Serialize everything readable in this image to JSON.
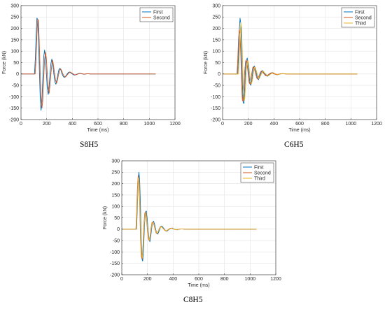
{
  "chart_data": [
    {
      "type": "line",
      "caption": "S8H5",
      "xlabel": "Time (ms)",
      "ylabel": "Force (kN)",
      "xlim": [
        0,
        1200
      ],
      "ylim": [
        -200,
        300
      ],
      "xticks": [
        0,
        200,
        400,
        600,
        800,
        1000,
        1200
      ],
      "yticks": [
        -200,
        -150,
        -100,
        -50,
        0,
        50,
        100,
        150,
        200,
        250,
        300
      ],
      "grid": true,
      "legend": "top-right",
      "series": [
        {
          "name": "First",
          "color": "#0072BD",
          "x": [
            0,
            105,
            112,
            118,
            124,
            130,
            137,
            143,
            150,
            156,
            163,
            170,
            177,
            184,
            191,
            198,
            205,
            212,
            219,
            226,
            233,
            240,
            248,
            256,
            264,
            272,
            280,
            288,
            296,
            304,
            312,
            320,
            330,
            340,
            350,
            360,
            370,
            380,
            390,
            400,
            410,
            420,
            430,
            440,
            450,
            460,
            470,
            480,
            490,
            500,
            520,
            540,
            560,
            600,
            650,
            1050
          ],
          "y": [
            0,
            0,
            70,
            170,
            245,
            240,
            150,
            20,
            -110,
            -160,
            -120,
            -20,
            75,
            105,
            70,
            0,
            -65,
            -90,
            -55,
            0,
            45,
            65,
            40,
            0,
            -35,
            -45,
            -25,
            0,
            20,
            25,
            15,
            0,
            -12,
            -15,
            -8,
            0,
            7,
            9,
            4,
            0,
            -4,
            -5,
            -2,
            0,
            2,
            3,
            1,
            0,
            -1,
            0,
            1,
            0,
            0,
            0,
            0,
            0
          ]
        },
        {
          "name": "Second",
          "color": "#D95319",
          "x": [
            0,
            110,
            117,
            123,
            130,
            136,
            142,
            149,
            156,
            163,
            170,
            177,
            184,
            191,
            198,
            205,
            212,
            219,
            226,
            233,
            240,
            247,
            254,
            262,
            270,
            278,
            286,
            294,
            302,
            310,
            318,
            326,
            336,
            346,
            356,
            366,
            376,
            386,
            396,
            406,
            416,
            426,
            436,
            446,
            456,
            466,
            476,
            486,
            496,
            506,
            520,
            540,
            560,
            600,
            650,
            1050
          ],
          "y": [
            0,
            0,
            60,
            160,
            240,
            235,
            145,
            15,
            -100,
            -150,
            -115,
            -15,
            65,
            95,
            65,
            0,
            -60,
            -85,
            -50,
            0,
            40,
            60,
            35,
            0,
            -30,
            -40,
            -22,
            0,
            18,
            22,
            12,
            0,
            -10,
            -13,
            -7,
            0,
            6,
            8,
            4,
            0,
            -3,
            -4,
            -2,
            0,
            2,
            2,
            1,
            0,
            -1,
            0,
            1,
            0,
            0,
            0,
            0,
            0
          ]
        }
      ]
    },
    {
      "type": "line",
      "caption": "C6H5",
      "xlabel": "Time (ms)",
      "ylabel": "Force (kN)",
      "xlim": [
        0,
        1200
      ],
      "ylim": [
        -200,
        300
      ],
      "xticks": [
        0,
        200,
        400,
        600,
        800,
        1000,
        1200
      ],
      "yticks": [
        -200,
        -150,
        -100,
        -50,
        0,
        50,
        100,
        150,
        200,
        250,
        300
      ],
      "grid": true,
      "legend": "top-right",
      "series": [
        {
          "name": "First",
          "color": "#0072BD",
          "x": [
            0,
            118,
            124,
            130,
            136,
            142,
            148,
            154,
            160,
            166,
            172,
            178,
            185,
            192,
            199,
            206,
            213,
            220,
            227,
            234,
            241,
            248,
            256,
            264,
            272,
            280,
            288,
            296,
            304,
            312,
            320,
            330,
            340,
            350,
            360,
            370,
            380,
            390,
            400,
            410,
            420,
            430,
            440,
            450,
            460,
            470,
            480,
            500,
            520,
            560,
            600,
            1050
          ],
          "y": [
            0,
            0,
            80,
            190,
            245,
            220,
            100,
            -40,
            -125,
            -130,
            -70,
            15,
            60,
            70,
            40,
            -5,
            -40,
            -50,
            -30,
            5,
            30,
            35,
            20,
            0,
            -20,
            -25,
            -12,
            0,
            12,
            15,
            7,
            0,
            -8,
            -10,
            -5,
            0,
            5,
            6,
            3,
            0,
            -3,
            -3,
            -1,
            0,
            1,
            2,
            1,
            0,
            0,
            0,
            0,
            0
          ]
        },
        {
          "name": "Second",
          "color": "#D95319",
          "x": [
            0,
            112,
            118,
            124,
            130,
            136,
            142,
            148,
            154,
            160,
            166,
            172,
            179,
            186,
            193,
            200,
            207,
            214,
            221,
            228,
            235,
            242,
            250,
            258,
            266,
            274,
            282,
            290,
            298,
            306,
            314,
            324,
            334,
            344,
            354,
            364,
            374,
            384,
            394,
            404,
            414,
            424,
            434,
            444,
            454,
            464,
            474,
            494,
            514,
            554,
            600,
            1050
          ],
          "y": [
            0,
            0,
            60,
            150,
            195,
            175,
            80,
            -40,
            -115,
            -120,
            -65,
            10,
            55,
            62,
            35,
            -5,
            -38,
            -45,
            -28,
            5,
            28,
            32,
            18,
            0,
            -18,
            -22,
            -11,
            0,
            11,
            13,
            6,
            0,
            -7,
            -9,
            -4,
            0,
            4,
            5,
            2,
            0,
            -2,
            -3,
            -1,
            0,
            1,
            1,
            1,
            0,
            0,
            0,
            0,
            0
          ]
        },
        {
          "name": "Third",
          "color": "#EDB120",
          "x": [
            0,
            124,
            130,
            136,
            142,
            148,
            154,
            160,
            166,
            172,
            178,
            184,
            191,
            198,
            205,
            212,
            219,
            226,
            233,
            240,
            247,
            254,
            262,
            270,
            278,
            286,
            294,
            302,
            310,
            318,
            326,
            336,
            346,
            356,
            366,
            376,
            386,
            396,
            406,
            416,
            426,
            436,
            446,
            456,
            466,
            476,
            486,
            506,
            526,
            566,
            600,
            1050
          ],
          "y": [
            0,
            0,
            70,
            170,
            225,
            200,
            90,
            -45,
            -110,
            -115,
            -60,
            10,
            50,
            58,
            32,
            -5,
            -35,
            -42,
            -25,
            5,
            25,
            30,
            16,
            0,
            -16,
            -20,
            -10,
            0,
            10,
            12,
            5,
            0,
            -6,
            -8,
            -4,
            0,
            4,
            5,
            2,
            0,
            -2,
            -2,
            -1,
            0,
            1,
            1,
            0,
            0,
            0,
            0,
            0,
            0
          ]
        }
      ]
    },
    {
      "type": "line",
      "caption": "C8H5",
      "xlabel": "Time (ms)",
      "ylabel": "Force (kN)",
      "xlim": [
        0,
        1200
      ],
      "ylim": [
        -200,
        300
      ],
      "xticks": [
        0,
        200,
        400,
        600,
        800,
        1000,
        1200
      ],
      "yticks": [
        -200,
        -150,
        -100,
        -50,
        0,
        50,
        100,
        150,
        200,
        250,
        300
      ],
      "grid": true,
      "legend": "top-right",
      "series": [
        {
          "name": "First",
          "color": "#0072BD",
          "x": [
            0,
            115,
            121,
            127,
            133,
            139,
            145,
            151,
            157,
            163,
            170,
            177,
            184,
            191,
            198,
            205,
            212,
            219,
            226,
            233,
            240,
            248,
            256,
            264,
            272,
            280,
            288,
            296,
            304,
            312,
            322,
            332,
            342,
            352,
            362,
            372,
            382,
            392,
            402,
            412,
            422,
            432,
            442,
            452,
            462,
            472,
            492,
            512,
            552,
            600,
            1050
          ],
          "y": [
            0,
            0,
            90,
            200,
            250,
            220,
            110,
            -40,
            -130,
            -140,
            -80,
            20,
            75,
            80,
            45,
            -5,
            -45,
            -55,
            -30,
            5,
            30,
            35,
            20,
            0,
            -18,
            -22,
            -12,
            0,
            12,
            14,
            7,
            0,
            -7,
            -9,
            -4,
            0,
            4,
            5,
            2,
            0,
            -2,
            -3,
            -1,
            0,
            1,
            1,
            0,
            0,
            0,
            0,
            0
          ]
        },
        {
          "name": "Second",
          "color": "#D95319",
          "x": [
            0,
            110,
            116,
            122,
            128,
            134,
            140,
            146,
            152,
            158,
            165,
            172,
            179,
            186,
            193,
            200,
            207,
            214,
            221,
            228,
            235,
            243,
            251,
            259,
            267,
            275,
            283,
            291,
            299,
            307,
            317,
            327,
            337,
            347,
            357,
            367,
            377,
            387,
            397,
            407,
            417,
            427,
            437,
            447,
            457,
            467,
            487,
            507,
            547,
            600,
            1050
          ],
          "y": [
            0,
            0,
            80,
            180,
            235,
            205,
            100,
            -40,
            -120,
            -130,
            -75,
            15,
            70,
            75,
            42,
            -5,
            -42,
            -50,
            -28,
            5,
            28,
            32,
            18,
            0,
            -16,
            -20,
            -10,
            0,
            10,
            12,
            6,
            0,
            -6,
            -8,
            -4,
            0,
            4,
            4,
            2,
            0,
            -2,
            -2,
            -1,
            0,
            1,
            1,
            0,
            0,
            0,
            0,
            0
          ]
        },
        {
          "name": "Third",
          "color": "#EDB120",
          "x": [
            0,
            112,
            118,
            124,
            130,
            136,
            142,
            148,
            154,
            160,
            167,
            174,
            181,
            188,
            195,
            202,
            209,
            216,
            223,
            230,
            237,
            245,
            253,
            261,
            269,
            277,
            285,
            293,
            301,
            309,
            319,
            329,
            339,
            349,
            359,
            369,
            379,
            389,
            399,
            409,
            419,
            429,
            439,
            449,
            459,
            469,
            489,
            509,
            549,
            600,
            1050
          ],
          "y": [
            0,
            0,
            75,
            170,
            225,
            195,
            95,
            -40,
            -115,
            -125,
            -70,
            15,
            65,
            72,
            40,
            -5,
            -40,
            -48,
            -26,
            5,
            26,
            30,
            17,
            0,
            -15,
            -18,
            -9,
            0,
            9,
            11,
            5,
            0,
            -5,
            -7,
            -3,
            0,
            3,
            4,
            2,
            0,
            -2,
            -2,
            -1,
            0,
            1,
            1,
            0,
            0,
            0,
            0,
            0
          ]
        }
      ]
    }
  ]
}
